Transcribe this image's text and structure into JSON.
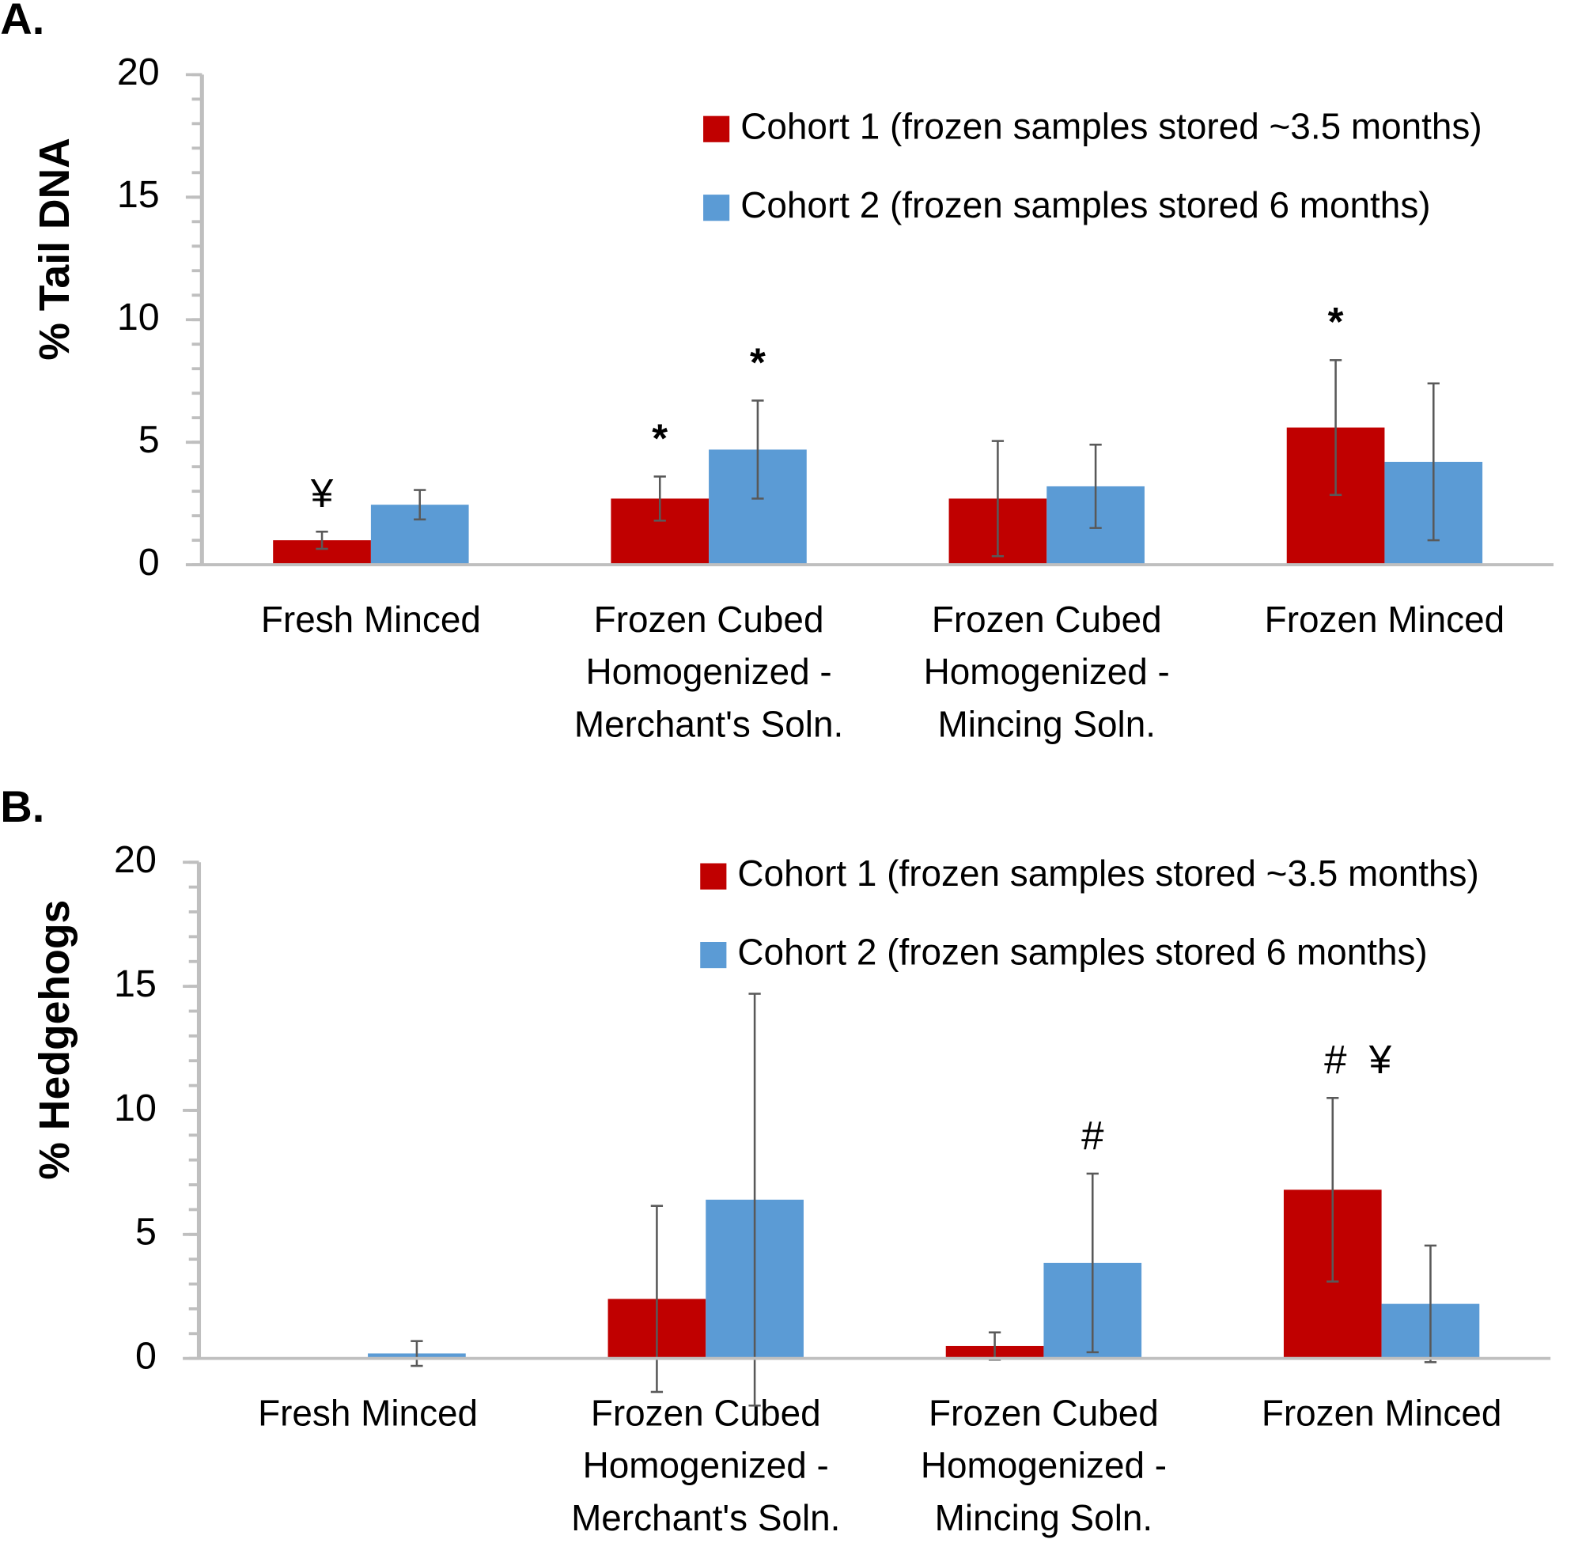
{
  "chart_data": [
    {
      "type": "bar",
      "panel": "A.",
      "ylabel": "% Tail DNA",
      "categories": [
        "Fresh Minced",
        "Frozen Cubed\nHomogenized -\nMerchant's Soln.",
        "Frozen Cubed\nHomogenized -\nMincing Soln.",
        "Frozen Minced"
      ],
      "series": [
        {
          "name": "Cohort 1 (frozen samples stored ~3.5 months)",
          "color": "#c00000",
          "values": [
            1.0,
            2.7,
            2.7,
            5.6
          ],
          "errors": [
            0.35,
            0.9,
            2.35,
            2.75
          ],
          "annotations": [
            "¥",
            "*",
            null,
            "*"
          ]
        },
        {
          "name": "Cohort 2 (frozen samples stored 6 months)",
          "color": "#5b9bd5",
          "values": [
            2.45,
            4.7,
            3.2,
            4.2
          ],
          "errors": [
            0.6,
            2.0,
            1.7,
            3.2
          ],
          "annotations": [
            null,
            "*",
            null,
            null
          ]
        }
      ],
      "ylim": [
        0,
        20
      ],
      "yticks": [
        0,
        5,
        10,
        15,
        20
      ],
      "minor_tick_step": 1,
      "legend": "top-right"
    },
    {
      "type": "bar",
      "panel": "B.",
      "ylabel": "% Hedgehogs",
      "categories": [
        "Fresh Minced",
        "Frozen Cubed\nHomogenized -\nMerchant's Soln.",
        "Frozen Cubed\nHomogenized -\nMincing Soln.",
        "Frozen Minced"
      ],
      "series": [
        {
          "name": "Cohort 1 (frozen samples stored ~3.5 months)",
          "color": "#c00000",
          "values": [
            0,
            2.4,
            0.5,
            6.8
          ],
          "errors": [
            0,
            3.75,
            0.55,
            3.7
          ],
          "annotations": [
            null,
            null,
            null,
            "#  ¥"
          ]
        },
        {
          "name": "Cohort 2 (frozen samples stored 6 months)",
          "color": "#5b9bd5",
          "values": [
            0.2,
            6.4,
            3.85,
            2.2
          ],
          "errors": [
            0.5,
            8.3,
            3.6,
            2.35
          ],
          "annotations": [
            null,
            null,
            "#",
            null
          ]
        }
      ],
      "ylim": [
        0,
        20
      ],
      "yticks": [
        0,
        5,
        10,
        15,
        20
      ],
      "minor_tick_step": 1,
      "legend": "top-right"
    }
  ]
}
